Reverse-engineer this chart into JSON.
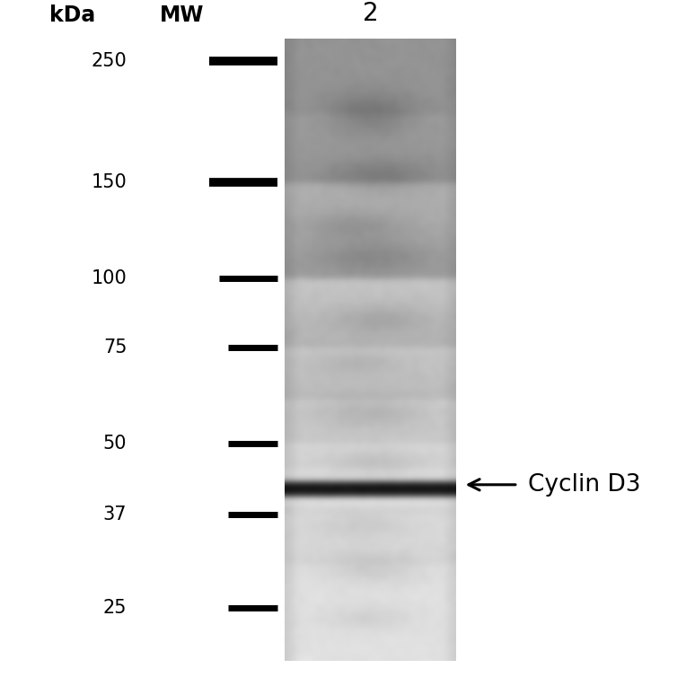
{
  "bg_color": "#ffffff",
  "lane_label": "2",
  "kda_label": "kDa",
  "mw_label": "MW",
  "mw_markers": [
    {
      "kda": 250,
      "label": "250"
    },
    {
      "kda": 150,
      "label": "150"
    },
    {
      "kda": 100,
      "label": "100"
    },
    {
      "kda": 75,
      "label": "75"
    },
    {
      "kda": 50,
      "label": "50"
    },
    {
      "kda": 37,
      "label": "37"
    },
    {
      "kda": 25,
      "label": "25"
    }
  ],
  "band_kda": 42,
  "band_label": "Cyclin D3",
  "text_color": "#000000",
  "marker_color": "#000000",
  "kda_log_min": 1.30103,
  "kda_log_max": 2.42813,
  "ylim_log_min": 1.255,
  "ylim_log_max": 2.47,
  "title_fontsize": 17,
  "marker_label_fontsize": 15,
  "annotation_fontsize": 19,
  "lane_label_fontsize": 20
}
